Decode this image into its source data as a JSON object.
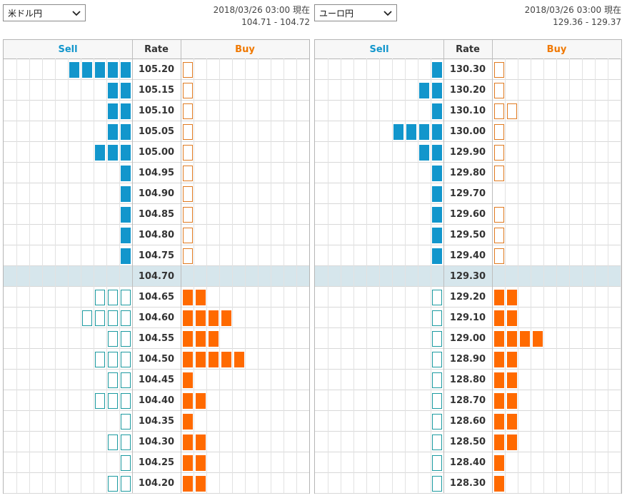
{
  "colors": {
    "sell_header": "#1296cc",
    "buy_header": "#f07800",
    "sell_filled": "#1296cc",
    "sell_outline": "#1b9aa0",
    "buy_filled": "#ff6a00",
    "buy_outline": "#e07a20",
    "current_row": "#d6e6ec"
  },
  "panels": [
    {
      "pair": "米ドル円",
      "datetime": "2018/03/26 03:00 現在",
      "quote": "104.71 - 104.72",
      "headers": {
        "sell": "Sell",
        "rate": "Rate",
        "buy": "Buy"
      },
      "rows": [
        {
          "rate": "105.20",
          "sell": 5,
          "sell_style": "filled",
          "buy": 1,
          "buy_style": "outline"
        },
        {
          "rate": "105.15",
          "sell": 2,
          "sell_style": "filled",
          "buy": 1,
          "buy_style": "outline"
        },
        {
          "rate": "105.10",
          "sell": 2,
          "sell_style": "filled",
          "buy": 1,
          "buy_style": "outline"
        },
        {
          "rate": "105.05",
          "sell": 2,
          "sell_style": "filled",
          "buy": 1,
          "buy_style": "outline"
        },
        {
          "rate": "105.00",
          "sell": 3,
          "sell_style": "filled",
          "buy": 1,
          "buy_style": "outline"
        },
        {
          "rate": "104.95",
          "sell": 1,
          "sell_style": "filled",
          "buy": 1,
          "buy_style": "outline"
        },
        {
          "rate": "104.90",
          "sell": 1,
          "sell_style": "filled",
          "buy": 1,
          "buy_style": "outline"
        },
        {
          "rate": "104.85",
          "sell": 1,
          "sell_style": "filled",
          "buy": 1,
          "buy_style": "outline"
        },
        {
          "rate": "104.80",
          "sell": 1,
          "sell_style": "filled",
          "buy": 1,
          "buy_style": "outline"
        },
        {
          "rate": "104.75",
          "sell": 1,
          "sell_style": "filled",
          "buy": 1,
          "buy_style": "outline"
        },
        {
          "rate": "104.70",
          "sell": 0,
          "sell_style": "filled",
          "buy": 0,
          "buy_style": "filled",
          "current": true
        },
        {
          "rate": "104.65",
          "sell": 3,
          "sell_style": "outline",
          "buy": 2,
          "buy_style": "filled"
        },
        {
          "rate": "104.60",
          "sell": 4,
          "sell_style": "outline",
          "buy": 4,
          "buy_style": "filled"
        },
        {
          "rate": "104.55",
          "sell": 2,
          "sell_style": "outline",
          "buy": 3,
          "buy_style": "filled"
        },
        {
          "rate": "104.50",
          "sell": 3,
          "sell_style": "outline",
          "buy": 5,
          "buy_style": "filled"
        },
        {
          "rate": "104.45",
          "sell": 2,
          "sell_style": "outline",
          "buy": 1,
          "buy_style": "filled"
        },
        {
          "rate": "104.40",
          "sell": 3,
          "sell_style": "outline",
          "buy": 2,
          "buy_style": "filled"
        },
        {
          "rate": "104.35",
          "sell": 1,
          "sell_style": "outline",
          "buy": 1,
          "buy_style": "filled"
        },
        {
          "rate": "104.30",
          "sell": 2,
          "sell_style": "outline",
          "buy": 2,
          "buy_style": "filled"
        },
        {
          "rate": "104.25",
          "sell": 1,
          "sell_style": "outline",
          "buy": 2,
          "buy_style": "filled"
        },
        {
          "rate": "104.20",
          "sell": 2,
          "sell_style": "outline",
          "buy": 2,
          "buy_style": "filled"
        }
      ]
    },
    {
      "pair": "ユーロ円",
      "datetime": "2018/03/26 03:00 現在",
      "quote": "129.36 - 129.37",
      "headers": {
        "sell": "Sell",
        "rate": "Rate",
        "buy": "Buy"
      },
      "rows": [
        {
          "rate": "130.30",
          "sell": 1,
          "sell_style": "filled",
          "buy": 1,
          "buy_style": "outline"
        },
        {
          "rate": "130.20",
          "sell": 2,
          "sell_style": "filled",
          "buy": 1,
          "buy_style": "outline"
        },
        {
          "rate": "130.10",
          "sell": 1,
          "sell_style": "filled",
          "buy": 2,
          "buy_style": "outline"
        },
        {
          "rate": "130.00",
          "sell": 4,
          "sell_style": "filled",
          "buy": 1,
          "buy_style": "outline"
        },
        {
          "rate": "129.90",
          "sell": 2,
          "sell_style": "filled",
          "buy": 1,
          "buy_style": "outline"
        },
        {
          "rate": "129.80",
          "sell": 1,
          "sell_style": "filled",
          "buy": 1,
          "buy_style": "outline"
        },
        {
          "rate": "129.70",
          "sell": 1,
          "sell_style": "filled",
          "buy": 0,
          "buy_style": "outline"
        },
        {
          "rate": "129.60",
          "sell": 1,
          "sell_style": "filled",
          "buy": 1,
          "buy_style": "outline"
        },
        {
          "rate": "129.50",
          "sell": 1,
          "sell_style": "filled",
          "buy": 1,
          "buy_style": "outline"
        },
        {
          "rate": "129.40",
          "sell": 1,
          "sell_style": "filled",
          "buy": 1,
          "buy_style": "outline"
        },
        {
          "rate": "129.30",
          "sell": 0,
          "sell_style": "filled",
          "buy": 0,
          "buy_style": "filled",
          "current": true
        },
        {
          "rate": "129.20",
          "sell": 1,
          "sell_style": "outline",
          "buy": 2,
          "buy_style": "filled"
        },
        {
          "rate": "129.10",
          "sell": 1,
          "sell_style": "outline",
          "buy": 2,
          "buy_style": "filled"
        },
        {
          "rate": "129.00",
          "sell": 1,
          "sell_style": "outline",
          "buy": 4,
          "buy_style": "filled"
        },
        {
          "rate": "128.90",
          "sell": 1,
          "sell_style": "outline",
          "buy": 2,
          "buy_style": "filled"
        },
        {
          "rate": "128.80",
          "sell": 1,
          "sell_style": "outline",
          "buy": 2,
          "buy_style": "filled"
        },
        {
          "rate": "128.70",
          "sell": 1,
          "sell_style": "outline",
          "buy": 2,
          "buy_style": "filled"
        },
        {
          "rate": "128.60",
          "sell": 1,
          "sell_style": "outline",
          "buy": 2,
          "buy_style": "filled"
        },
        {
          "rate": "128.50",
          "sell": 1,
          "sell_style": "outline",
          "buy": 2,
          "buy_style": "filled"
        },
        {
          "rate": "128.40",
          "sell": 1,
          "sell_style": "outline",
          "buy": 1,
          "buy_style": "filled"
        },
        {
          "rate": "128.30",
          "sell": 1,
          "sell_style": "outline",
          "buy": 1,
          "buy_style": "filled"
        }
      ]
    }
  ]
}
